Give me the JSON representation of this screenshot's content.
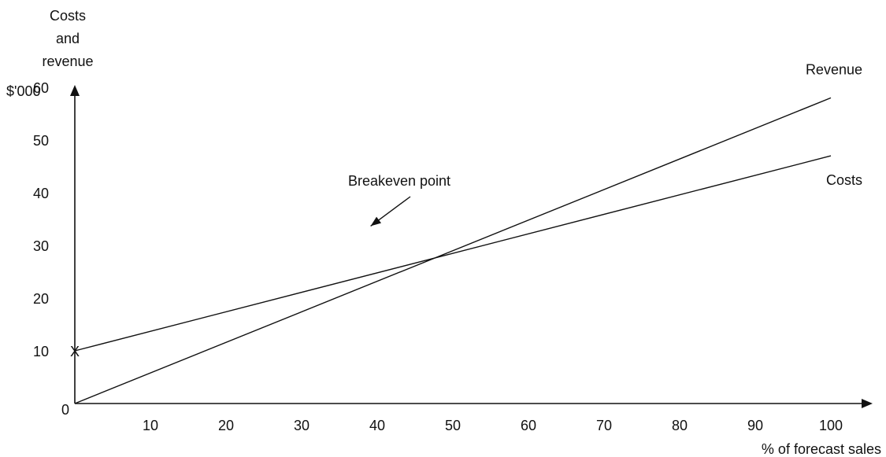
{
  "chart_data": {
    "type": "line",
    "title": "",
    "ylabel_lines": [
      "Costs",
      "and",
      "revenue",
      "$'000"
    ],
    "xlabel": "% of forecast sales",
    "x_ticks": [
      10,
      20,
      30,
      40,
      50,
      60,
      70,
      80,
      90,
      100
    ],
    "y_ticks": [
      10,
      20,
      30,
      40,
      50,
      60
    ],
    "origin_label": "0",
    "xlim": [
      0,
      110
    ],
    "ylim": [
      0,
      70
    ],
    "grid": false,
    "series": [
      {
        "name": "Revenue",
        "x": [
          0,
          100
        ],
        "y": [
          0,
          58
        ]
      },
      {
        "name": "Costs",
        "x": [
          0,
          100
        ],
        "y": [
          10,
          47
        ]
      }
    ],
    "fixed_cost_marker": {
      "label": "X",
      "x": 0,
      "y": 10
    },
    "annotations": [
      {
        "text": "Breakeven point",
        "x": 46,
        "y": 28
      }
    ],
    "colors": {
      "ink": "#111111"
    }
  }
}
